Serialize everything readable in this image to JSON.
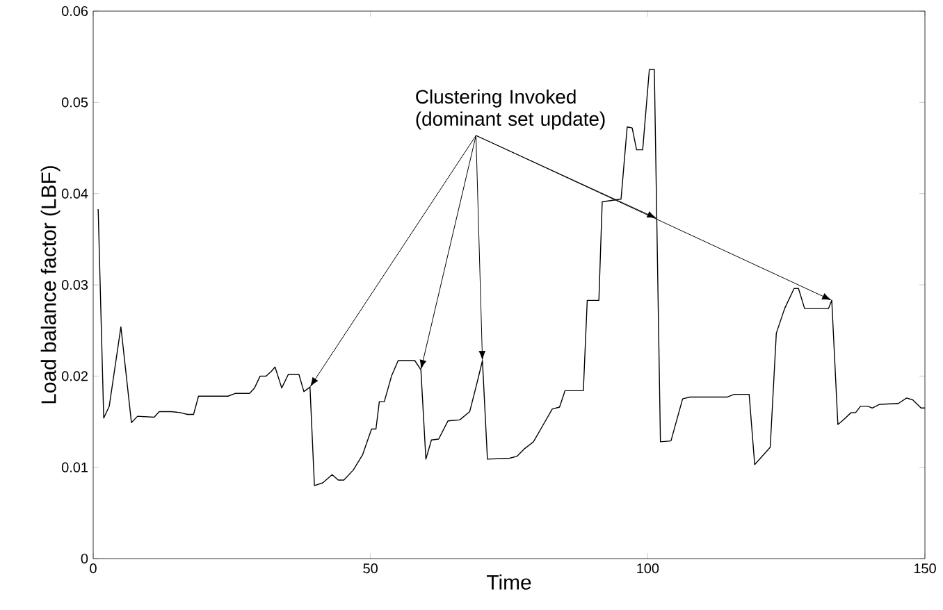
{
  "chart_data": {
    "type": "line",
    "xlabel": "Time",
    "ylabel": "Load balance factor (LBF)",
    "annotations": [
      {
        "text": "Clustering Invoked (dominant set update)",
        "x": 70.2,
        "y": 0.0217
      }
    ],
    "xlim": [
      0,
      150
    ],
    "ylim": [
      0,
      0.06
    ],
    "xticks": [
      0,
      50,
      100,
      150
    ],
    "yticks": [
      0,
      0.01,
      0.02,
      0.03,
      0.04,
      0.05,
      0.06
    ],
    "grid": false,
    "series": [
      {
        "color": "#000000",
        "x": [
          0.9,
          1.9,
          2.9,
          5.0,
          6.9,
          8.0,
          11.0,
          11.9,
          14.1,
          15.7,
          17.0,
          18.1,
          19.0,
          24.3,
          25.6,
          28.2,
          29.1,
          30.1,
          31.2,
          32.1,
          32.8,
          34.0,
          35.2,
          37.1,
          38.0,
          39.1,
          39.9,
          41.4,
          43.1,
          44.2,
          45.2,
          46.9,
          48.6,
          50.2,
          51.0,
          51.6,
          52.5,
          53.8,
          55.0,
          58.0,
          59.1,
          60.0,
          61.0,
          62.3,
          64.0,
          66.1,
          67.9,
          69.2,
          70.2,
          71.1,
          75.1,
          76.4,
          77.7,
          79.4,
          81.1,
          82.8,
          84.1,
          85.1,
          88.4,
          89.1,
          91.2,
          91.8,
          95.2,
          96.3,
          97.2,
          98.0,
          99.1,
          100.3,
          101.2,
          102.3,
          104.2,
          106.3,
          107.6,
          114.3,
          115.6,
          118.3,
          119.3,
          122.1,
          123.2,
          124.7,
          126.4,
          127.2,
          128.3,
          132.6,
          133.2,
          134.3,
          135.1,
          136.7,
          137.5,
          138.4,
          139.7,
          140.5,
          141.8,
          145.2,
          146.7,
          147.8,
          149.3,
          150
        ],
        "values": [
          0.0383,
          0.0154,
          0.0167,
          0.0254,
          0.0149,
          0.0156,
          0.0155,
          0.0161,
          0.0161,
          0.016,
          0.0158,
          0.0158,
          0.0178,
          0.0178,
          0.0181,
          0.0181,
          0.0187,
          0.02,
          0.02,
          0.0205,
          0.021,
          0.0187,
          0.0202,
          0.0202,
          0.0183,
          0.0188,
          0.008,
          0.0083,
          0.0092,
          0.0086,
          0.0086,
          0.0097,
          0.0114,
          0.0142,
          0.0142,
          0.0172,
          0.0172,
          0.02,
          0.0217,
          0.0217,
          0.0207,
          0.0109,
          0.013,
          0.0131,
          0.0151,
          0.0152,
          0.0161,
          0.0192,
          0.0217,
          0.0109,
          0.011,
          0.0112,
          0.012,
          0.0128,
          0.0146,
          0.0164,
          0.0166,
          0.0184,
          0.0184,
          0.0283,
          0.0283,
          0.0391,
          0.0394,
          0.0473,
          0.0472,
          0.0448,
          0.0448,
          0.0536,
          0.0536,
          0.0128,
          0.0129,
          0.0175,
          0.0177,
          0.0177,
          0.018,
          0.018,
          0.0103,
          0.0122,
          0.0247,
          0.0274,
          0.0296,
          0.0296,
          0.0274,
          0.0274,
          0.0283,
          0.0147,
          0.0151,
          0.016,
          0.016,
          0.0167,
          0.0167,
          0.0165,
          0.0169,
          0.017,
          0.0176,
          0.0174,
          0.0165,
          0.0165
        ]
      }
    ]
  }
}
